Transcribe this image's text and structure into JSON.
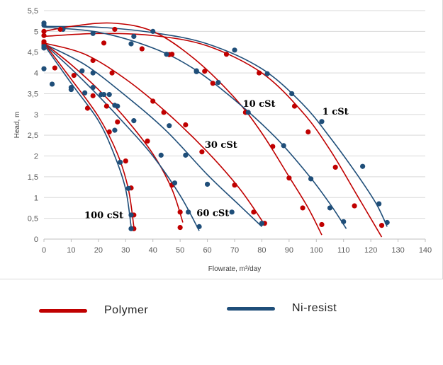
{
  "chart_data": {
    "type": "scatter",
    "title": "",
    "xlabel": "Flowrate, m³/day",
    "ylabel": "Head, m",
    "xlim": [
      0,
      140
    ],
    "ylim": [
      0,
      5.5
    ],
    "x_ticks": [
      "0",
      "10",
      "20",
      "30",
      "40",
      "50",
      "60",
      "70",
      "80",
      "90",
      "100",
      "110",
      "120",
      "130",
      "140"
    ],
    "y_ticks": [
      "0",
      "0,5",
      "1",
      "1,5",
      "2",
      "2,5",
      "3",
      "3,5",
      "4",
      "4,5",
      "5",
      "5,5"
    ],
    "grid": true,
    "colors": {
      "Polymer": "#c00000",
      "Ni-resist": "#1f4e79"
    },
    "curve_labels": [
      {
        "text": "1 cSt",
        "x": 107,
        "y": 3.0
      },
      {
        "text": "10 cSt",
        "x": 79,
        "y": 3.18
      },
      {
        "text": "30 cSt",
        "x": 65,
        "y": 2.2
      },
      {
        "text": "60 cSt",
        "x": 62,
        "y": 0.55
      },
      {
        "text": "100 cSt",
        "x": 22,
        "y": 0.5
      }
    ],
    "series": [
      {
        "name": "Polymer",
        "viscosity": "1 cSt",
        "points": [
          [
            0,
            4.9
          ],
          [
            26,
            5.05
          ],
          [
            47,
            4.45
          ],
          [
            67,
            4.45
          ],
          [
            79,
            4.0
          ],
          [
            92,
            3.2
          ],
          [
            97,
            2.58
          ],
          [
            107,
            1.73
          ],
          [
            114,
            0.8
          ],
          [
            124,
            0.33
          ]
        ],
        "curve": [
          [
            0,
            4.88
          ],
          [
            20,
            4.95
          ],
          [
            40,
            4.9
          ],
          [
            60,
            4.65
          ],
          [
            80,
            4.0
          ],
          [
            95,
            3.05
          ],
          [
            105,
            2.15
          ],
          [
            115,
            1.05
          ],
          [
            124,
            0.05
          ]
        ]
      },
      {
        "name": "Ni-resist",
        "viscosity": "1 cSt",
        "points": [
          [
            0,
            5.2
          ],
          [
            7,
            5.05
          ],
          [
            18,
            4.95
          ],
          [
            33,
            4.88
          ],
          [
            40,
            5.0
          ],
          [
            56,
            4.05
          ],
          [
            70,
            4.55
          ],
          [
            82,
            3.98
          ],
          [
            91,
            3.5
          ],
          [
            102,
            2.83
          ],
          [
            117,
            1.75
          ],
          [
            123,
            0.85
          ],
          [
            126,
            0.4
          ]
        ],
        "curve": [
          [
            0,
            5.12
          ],
          [
            20,
            5.1
          ],
          [
            40,
            4.97
          ],
          [
            60,
            4.7
          ],
          [
            80,
            4.1
          ],
          [
            95,
            3.25
          ],
          [
            105,
            2.45
          ],
          [
            115,
            1.55
          ],
          [
            122,
            0.85
          ],
          [
            126,
            0.3
          ]
        ]
      },
      {
        "name": "Polymer",
        "viscosity": "10 cSt",
        "points": [
          [
            0,
            5.0
          ],
          [
            6,
            5.05
          ],
          [
            22,
            4.72
          ],
          [
            36,
            4.58
          ],
          [
            46,
            4.44
          ],
          [
            59,
            4.04
          ],
          [
            62,
            3.75
          ],
          [
            74,
            3.05
          ],
          [
            84,
            2.23
          ],
          [
            90,
            1.47
          ],
          [
            95,
            0.75
          ],
          [
            102,
            0.35
          ]
        ],
        "curve": [
          [
            0,
            5.0
          ],
          [
            10,
            5.12
          ],
          [
            25,
            5.2
          ],
          [
            40,
            5.0
          ],
          [
            55,
            4.35
          ],
          [
            70,
            3.4
          ],
          [
            80,
            2.55
          ],
          [
            90,
            1.5
          ],
          [
            97,
            0.75
          ],
          [
            102,
            0.1
          ]
        ]
      },
      {
        "name": "Ni-resist",
        "viscosity": "10 cSt",
        "points": [
          [
            0,
            5.15
          ],
          [
            32,
            4.7
          ],
          [
            45,
            4.45
          ],
          [
            56,
            4.03
          ],
          [
            64,
            3.77
          ],
          [
            75,
            3.05
          ],
          [
            88,
            2.25
          ],
          [
            98,
            1.45
          ],
          [
            105,
            0.75
          ],
          [
            110,
            0.42
          ]
        ],
        "curve": [
          [
            0,
            5.1
          ],
          [
            20,
            4.98
          ],
          [
            40,
            4.6
          ],
          [
            55,
            4.1
          ],
          [
            70,
            3.35
          ],
          [
            85,
            2.45
          ],
          [
            97,
            1.55
          ],
          [
            105,
            0.85
          ],
          [
            111,
            0.25
          ]
        ]
      },
      {
        "name": "Polymer",
        "viscosity": "30 cSt",
        "points": [
          [
            0,
            4.7
          ],
          [
            18,
            4.3
          ],
          [
            25,
            4.0
          ],
          [
            40,
            3.32
          ],
          [
            44,
            3.05
          ],
          [
            52,
            2.75
          ],
          [
            58,
            2.1
          ],
          [
            70,
            1.3
          ],
          [
            77,
            0.65
          ],
          [
            81,
            0.38
          ]
        ],
        "curve": [
          [
            0,
            4.72
          ],
          [
            15,
            4.45
          ],
          [
            30,
            3.85
          ],
          [
            45,
            3.05
          ],
          [
            60,
            2.1
          ],
          [
            72,
            1.2
          ],
          [
            81,
            0.35
          ]
        ]
      },
      {
        "name": "Ni-resist",
        "viscosity": "30 cSt",
        "points": [
          [
            0,
            4.65
          ],
          [
            14,
            4.05
          ],
          [
            18,
            4.0
          ],
          [
            24,
            3.48
          ],
          [
            26,
            3.22
          ],
          [
            46,
            2.73
          ],
          [
            52,
            2.02
          ],
          [
            60,
            1.32
          ],
          [
            69,
            0.65
          ],
          [
            80,
            0.38
          ]
        ],
        "curve": [
          [
            0,
            4.7
          ],
          [
            15,
            4.2
          ],
          [
            30,
            3.45
          ],
          [
            45,
            2.6
          ],
          [
            60,
            1.55
          ],
          [
            72,
            0.8
          ],
          [
            80,
            0.3
          ]
        ]
      },
      {
        "name": "Polymer",
        "viscosity": "60 cSt",
        "points": [
          [
            0,
            4.75
          ],
          [
            11,
            3.94
          ],
          [
            18,
            3.45
          ],
          [
            23,
            3.2
          ],
          [
            27,
            2.82
          ],
          [
            38,
            2.36
          ],
          [
            47,
            1.3
          ],
          [
            50,
            0.65
          ],
          [
            50,
            0.28
          ]
        ],
        "curve": [
          [
            0,
            4.72
          ],
          [
            10,
            4.2
          ],
          [
            20,
            3.6
          ],
          [
            30,
            2.9
          ],
          [
            40,
            2.05
          ],
          [
            47,
            1.2
          ],
          [
            51,
            0.4
          ]
        ]
      },
      {
        "name": "Ni-resist",
        "viscosity": "60 cSt",
        "points": [
          [
            0,
            4.1
          ],
          [
            3,
            3.73
          ],
          [
            10,
            3.65
          ],
          [
            18,
            3.65
          ],
          [
            21,
            3.48
          ],
          [
            27,
            3.2
          ],
          [
            33,
            2.85
          ],
          [
            43,
            2.02
          ],
          [
            48,
            1.35
          ],
          [
            53,
            0.65
          ],
          [
            57,
            0.3
          ]
        ],
        "curve": [
          [
            0,
            4.7
          ],
          [
            10,
            4.1
          ],
          [
            20,
            3.45
          ],
          [
            30,
            2.75
          ],
          [
            40,
            2.0
          ],
          [
            50,
            1.05
          ],
          [
            57,
            0.2
          ]
        ]
      },
      {
        "name": "Polymer",
        "viscosity": "100 cSt",
        "points": [
          [
            0,
            4.75
          ],
          [
            4,
            4.12
          ],
          [
            16,
            3.15
          ],
          [
            24,
            2.58
          ],
          [
            30,
            1.88
          ],
          [
            32,
            1.23
          ],
          [
            33,
            0.58
          ],
          [
            33,
            0.25
          ]
        ],
        "curve": [
          [
            0,
            4.72
          ],
          [
            10,
            3.85
          ],
          [
            20,
            2.95
          ],
          [
            27,
            2.05
          ],
          [
            31,
            1.2
          ],
          [
            33,
            0.3
          ]
        ]
      },
      {
        "name": "Ni-resist",
        "viscosity": "100 cSt",
        "points": [
          [
            0,
            4.6
          ],
          [
            10,
            3.6
          ],
          [
            15,
            3.52
          ],
          [
            22,
            3.48
          ],
          [
            26,
            2.62
          ],
          [
            28,
            1.85
          ],
          [
            31,
            1.22
          ],
          [
            32,
            0.58
          ],
          [
            32,
            0.25
          ]
        ],
        "curve": [
          [
            0,
            4.68
          ],
          [
            10,
            3.75
          ],
          [
            20,
            2.85
          ],
          [
            26,
            2.0
          ],
          [
            30,
            1.2
          ],
          [
            32,
            0.3
          ]
        ]
      }
    ]
  },
  "legend": [
    {
      "label": "Polymer",
      "color": "#c00000"
    },
    {
      "label": "Ni-resist",
      "color": "#1f4e79"
    }
  ]
}
